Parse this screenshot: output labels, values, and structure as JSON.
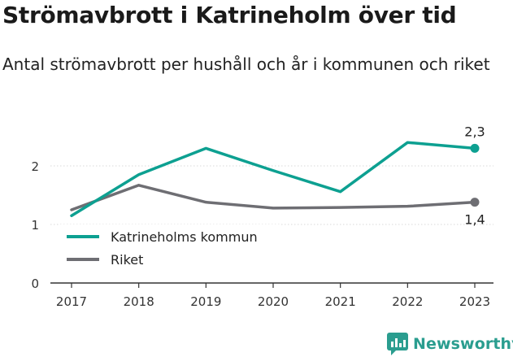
{
  "title": "Strömavbrott i Katrineholm över tid",
  "subtitle": "Antal strömavbrott per hushåll och år i kommunen och riket",
  "brand": "Newsworthy",
  "chart_data": {
    "type": "line",
    "x": [
      "2017",
      "2018",
      "2019",
      "2020",
      "2021",
      "2022",
      "2023"
    ],
    "ylim": [
      0,
      2.5
    ],
    "yticks": [
      0,
      1,
      2
    ],
    "grid": true,
    "legend": "bottom-left",
    "series": [
      {
        "name": "Katrineholms kommun",
        "color": "#0da091",
        "values": [
          1.15,
          1.85,
          2.3,
          1.92,
          1.56,
          2.4,
          2.3
        ],
        "end_label": "2,3"
      },
      {
        "name": "Riket",
        "color": "#6e6e73",
        "values": [
          1.25,
          1.67,
          1.38,
          1.28,
          1.29,
          1.31,
          1.38
        ],
        "end_label": "1,4"
      }
    ]
  }
}
